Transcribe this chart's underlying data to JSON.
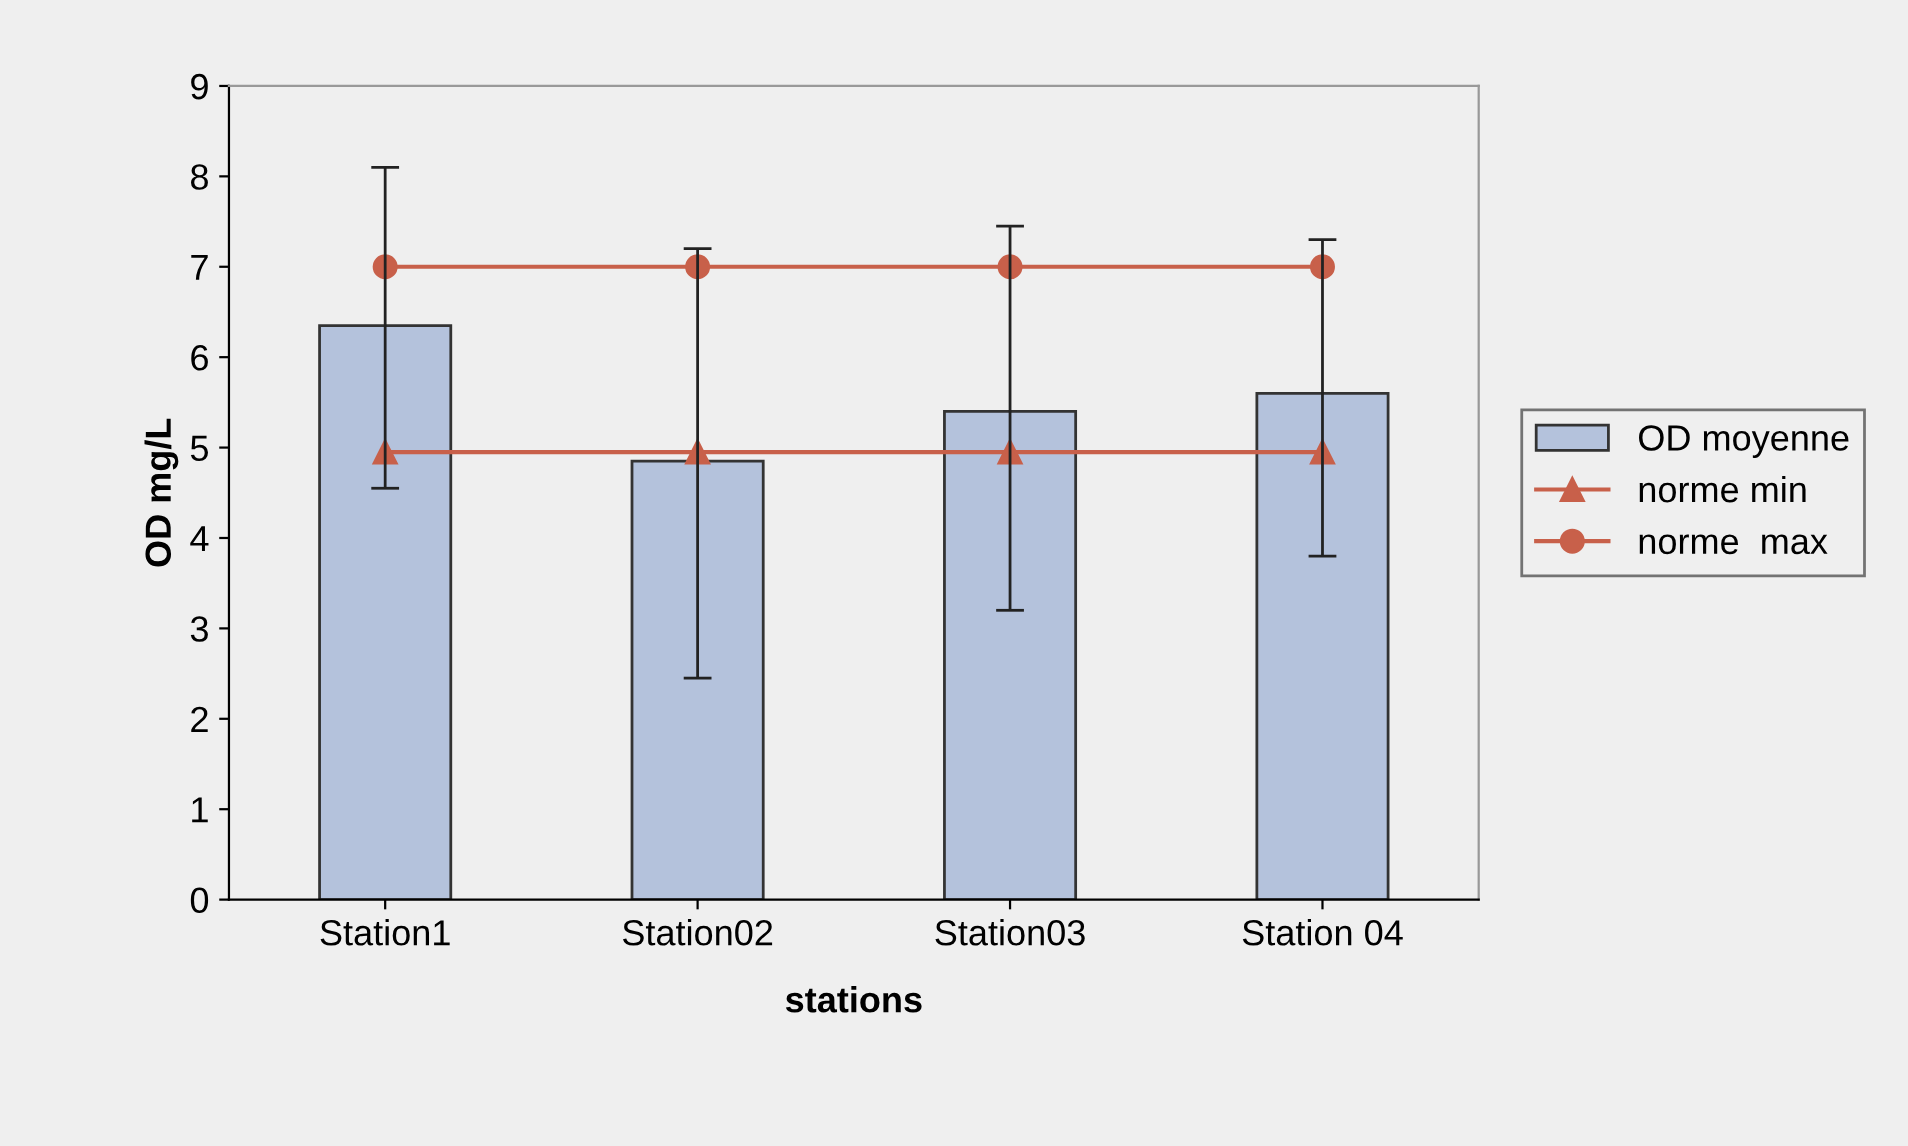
{
  "chart_data": {
    "type": "bar",
    "xlabel": "stations",
    "ylabel": "OD mg/L",
    "categories": [
      "Station1",
      "Station02",
      "Station03",
      "Station 04"
    ],
    "ylim": [
      0,
      9
    ],
    "yticks": [
      0,
      1,
      2,
      3,
      4,
      5,
      6,
      7,
      8,
      9
    ],
    "grid": false,
    "legend": "right",
    "series": [
      {
        "name": "OD moyenne",
        "color": "#b4c2dc",
        "values": [
          6.35,
          4.85,
          5.4,
          5.6
        ],
        "errors": [
          [
            4.55,
            8.1
          ],
          [
            2.45,
            7.2
          ],
          [
            3.2,
            7.45
          ],
          [
            3.8,
            7.3
          ]
        ]
      },
      {
        "name": "norme min",
        "type": "line",
        "color": "#c8604a",
        "marker": "triangle",
        "values": [
          4.95,
          4.95,
          4.95,
          4.95
        ]
      },
      {
        "name": "norme  max",
        "type": "line",
        "color": "#c8604a",
        "marker": "circle",
        "values": [
          7.0,
          7.0,
          7.0,
          7.0
        ]
      }
    ]
  }
}
